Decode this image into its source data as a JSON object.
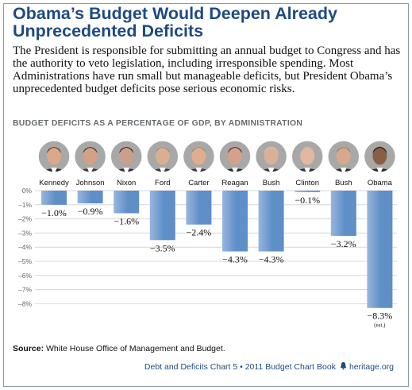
{
  "header": {
    "title": "Obama’s Budget Would Deepen Already Unprecedented Deficits",
    "intro": "The President is responsible for submitting an annual budget to Congress and has the authority to veto legislation, including irresponsible spending. Most Administrations have run small but manageable deficits, but President Obama’s unprecedented budget deficits pose serious economic risks."
  },
  "chart_data": {
    "type": "bar",
    "title": "BUDGET DEFICITS AS A PERCENTAGE OF GDP, BY ADMINISTRATION",
    "categories": [
      "Kennedy",
      "Johnson",
      "Nixon",
      "Ford",
      "Carter",
      "Reagan",
      "Bush",
      "Clinton",
      "Bush",
      "Obama"
    ],
    "values": [
      -1.0,
      -0.9,
      -1.6,
      -3.5,
      -2.4,
      -4.3,
      -4.3,
      -0.1,
      -3.2,
      -8.3
    ],
    "value_labels": [
      "−1.0%",
      "−0.9%",
      "−1.6%",
      "−3.5%",
      "−2.4%",
      "−4.3%",
      "−4.3%",
      "−0.1%",
      "−3.2%",
      "−8.3%"
    ],
    "annotations": [
      "",
      "",
      "",
      "",
      "",
      "",
      "",
      "",
      "",
      "(est.)"
    ],
    "yticks": [
      "0%",
      "–1%",
      "–2%",
      "–3%",
      "–4%",
      "–5%",
      "–6%",
      "–7%",
      "–8%"
    ],
    "ylim": [
      -8.5,
      0
    ],
    "grid": true,
    "bar_color": "#5e8fc7",
    "bar_color_light": "#97b6de",
    "xlabel": "",
    "ylabel": ""
  },
  "footer": {
    "source_label": "Source:",
    "source_text": " White House Office of Management and Budget.",
    "credit": "Debt and Deficits Chart 5 • 2011 Budget Chart Book",
    "brand": "heritage.org"
  }
}
